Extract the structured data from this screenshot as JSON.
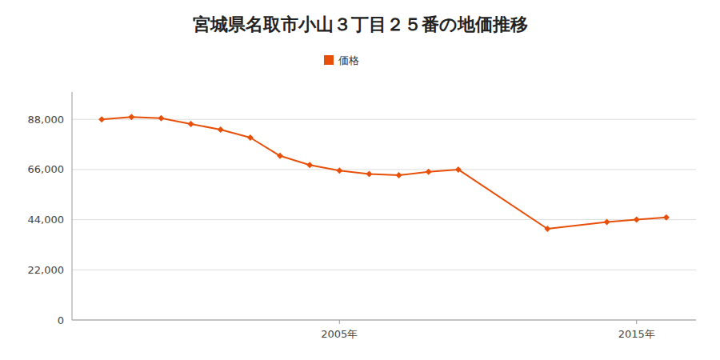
{
  "chart_data": {
    "type": "line",
    "title": "宮城県名取市小山３丁目２５番の地価推移",
    "x": [
      1997,
      1998,
      1999,
      2000,
      2001,
      2002,
      2003,
      2004,
      2005,
      2006,
      2007,
      2008,
      2009,
      2012,
      2014,
      2015,
      2016
    ],
    "series": [
      {
        "name": "価格",
        "color": "#E8500A",
        "marker": "diamond",
        "line_style": "solid",
        "values": [
          88000,
          89000,
          88500,
          86000,
          83500,
          80000,
          72000,
          68000,
          65500,
          64000,
          63500,
          65000,
          66000,
          40000,
          43000,
          44000,
          45000
        ]
      }
    ],
    "xlim": [
      1996,
      2017
    ],
    "xticks": [
      {
        "value": 2005,
        "label": "2005年"
      },
      {
        "value": 2015,
        "label": "2015年"
      }
    ],
    "ylim": [
      0,
      100000
    ],
    "yticks": [
      0,
      {
        "value": 22000,
        "label": "22,000"
      },
      {
        "value": 44000,
        "label": "44,000"
      },
      {
        "value": 66000,
        "label": "66,000"
      },
      {
        "value": 88000,
        "label": "88,000"
      }
    ],
    "grid": true,
    "legend": "top"
  }
}
